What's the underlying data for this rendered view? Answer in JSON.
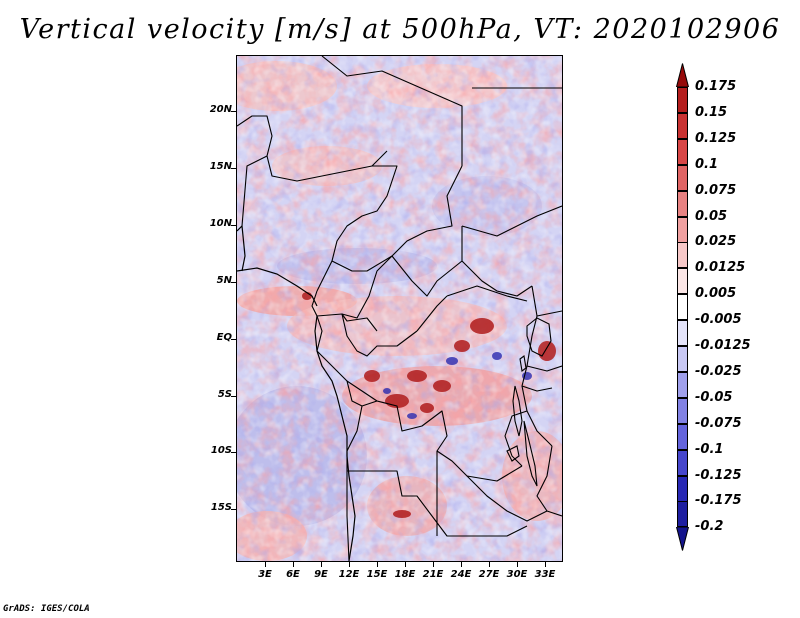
{
  "title": "Vertical velocity [m/s] at 500hPa, VT: 2020102906",
  "footer": "GrADS: IGES/COLA",
  "map": {
    "region": "Central Africa",
    "variable": "Vertical velocity",
    "level": "500hPa",
    "valid_time": "2020102906",
    "lat_labels": [
      "20N",
      "15N",
      "10N",
      "5N",
      "EQ",
      "5S",
      "10S",
      "15S"
    ],
    "lon_labels": [
      "3E",
      "6E",
      "9E",
      "12E",
      "15E",
      "18E",
      "21E",
      "24E",
      "27E",
      "30E",
      "33E"
    ]
  },
  "colorbar": {
    "labels": [
      "0.175",
      "0.15",
      "0.125",
      "0.1",
      "0.075",
      "0.05",
      "0.025",
      "0.0125",
      "0.005",
      "-0.005",
      "-0.0125",
      "-0.025",
      "-0.05",
      "-0.075",
      "-0.1",
      "-0.125",
      "-0.175",
      "-0.2"
    ],
    "colors": [
      "#a01414",
      "#b41e1e",
      "#c83232",
      "#d84646",
      "#e06464",
      "#e88282",
      "#f0a0a0",
      "#f7c8c8",
      "#fbe6e6",
      "#ffffff",
      "#e4e4fa",
      "#c8c8f4",
      "#a0a0ec",
      "#8282e4",
      "#6464dc",
      "#4646cc",
      "#2828b4",
      "#1e1ea0",
      "#14148c"
    ],
    "top_arrow_color": "#960a0a",
    "bottom_arrow_color": "#14148c"
  }
}
